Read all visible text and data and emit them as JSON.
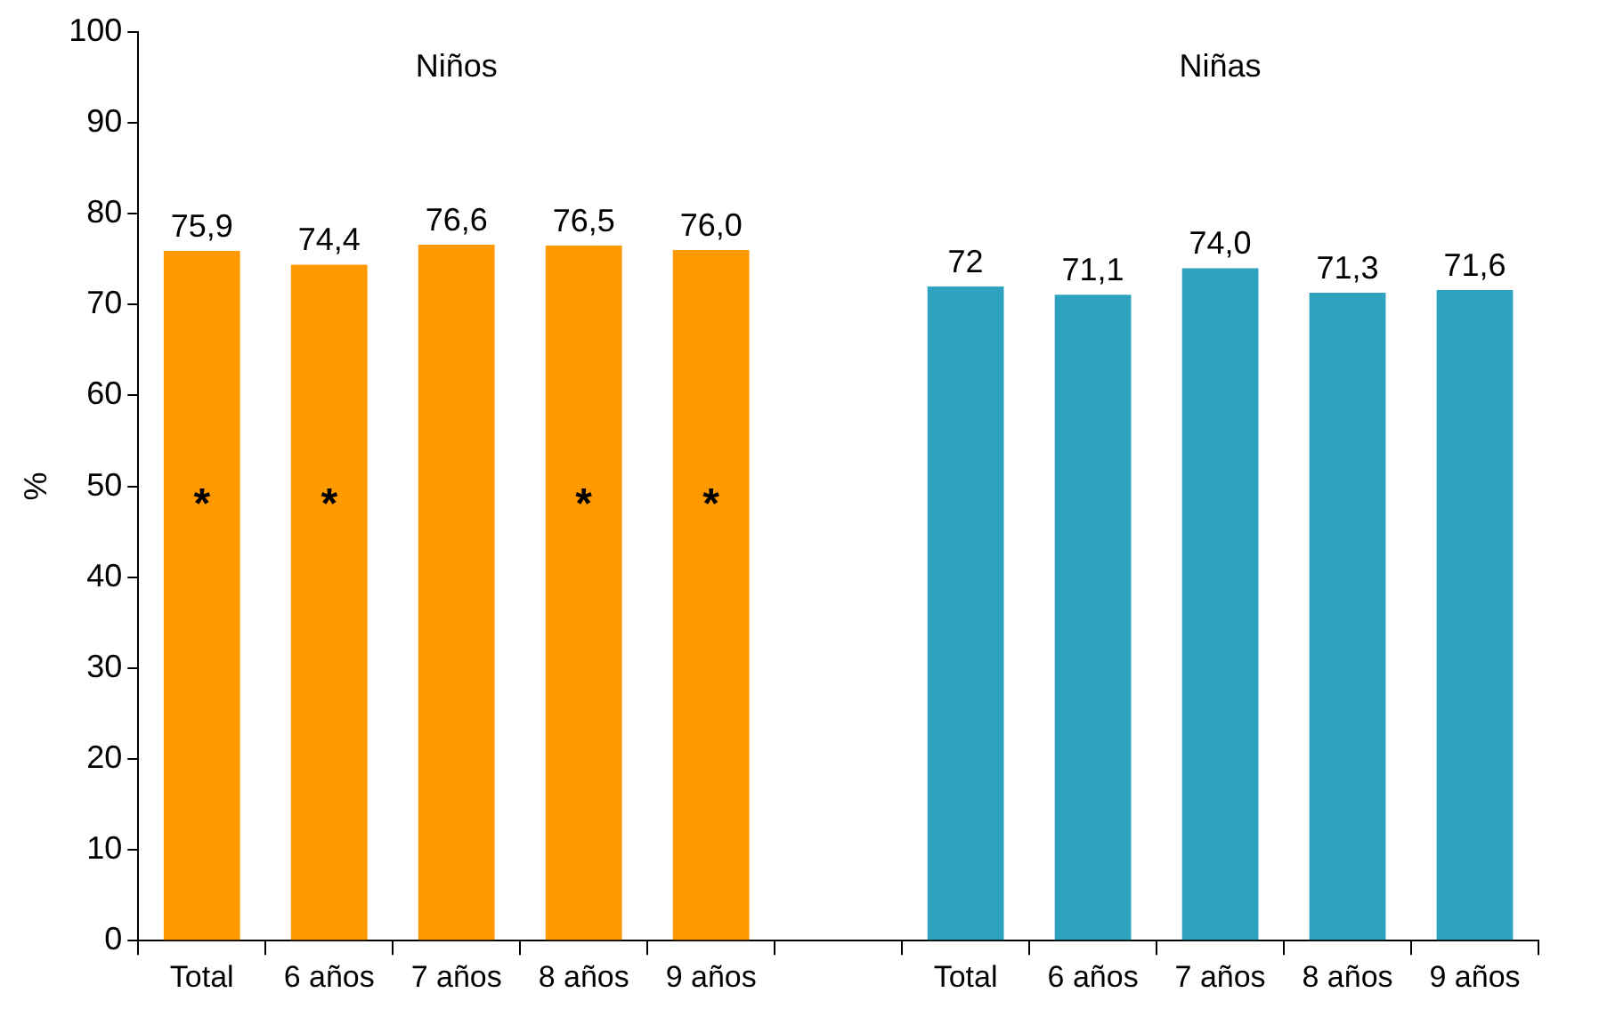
{
  "chart_data": {
    "type": "bar",
    "ylabel": "%",
    "categories": [
      "Total",
      "6 años",
      "7 años",
      "8 años",
      "9 años",
      null,
      "Total",
      "6 años",
      "7 años",
      "8 años",
      "9 años"
    ],
    "values": [
      75.9,
      74.4,
      76.6,
      76.5,
      76.0,
      null,
      72,
      71.1,
      74.0,
      71.3,
      71.6
    ],
    "colors": [
      "#ff9900",
      "#ff9900",
      "#ff9900",
      "#ff9900",
      "#ff9900",
      null,
      "#2ea3c0",
      "#2ea3c0",
      "#2ea3c0",
      "#2ea3c0",
      "#2ea3c0"
    ],
    "value_labels": [
      "75,9",
      "74,4",
      "76,6",
      "76,5",
      "76,0",
      null,
      "72",
      "71,1",
      "74,0",
      "71,3",
      "71,6"
    ],
    "ylim": [
      0,
      100
    ],
    "yticks": [
      0,
      10,
      20,
      30,
      40,
      50,
      60,
      70,
      80,
      90,
      100
    ],
    "grid": false,
    "legend": false,
    "annotations": [
      "Niños",
      "Niñas",
      "*",
      "*",
      "*",
      "*"
    ]
  }
}
